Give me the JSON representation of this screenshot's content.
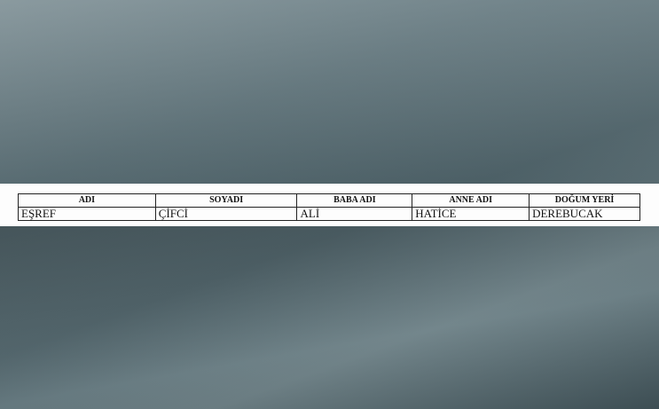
{
  "table": {
    "header": [
      "ADI",
      "SOYADI",
      "BABA ADI",
      "ANNE ADI",
      "DOĞUM YERİ"
    ],
    "rows": [
      [
        "EŞREF",
        "ÇİFCİ",
        "ALİ",
        "HATİCE",
        "DEREBUCAK"
      ]
    ]
  }
}
